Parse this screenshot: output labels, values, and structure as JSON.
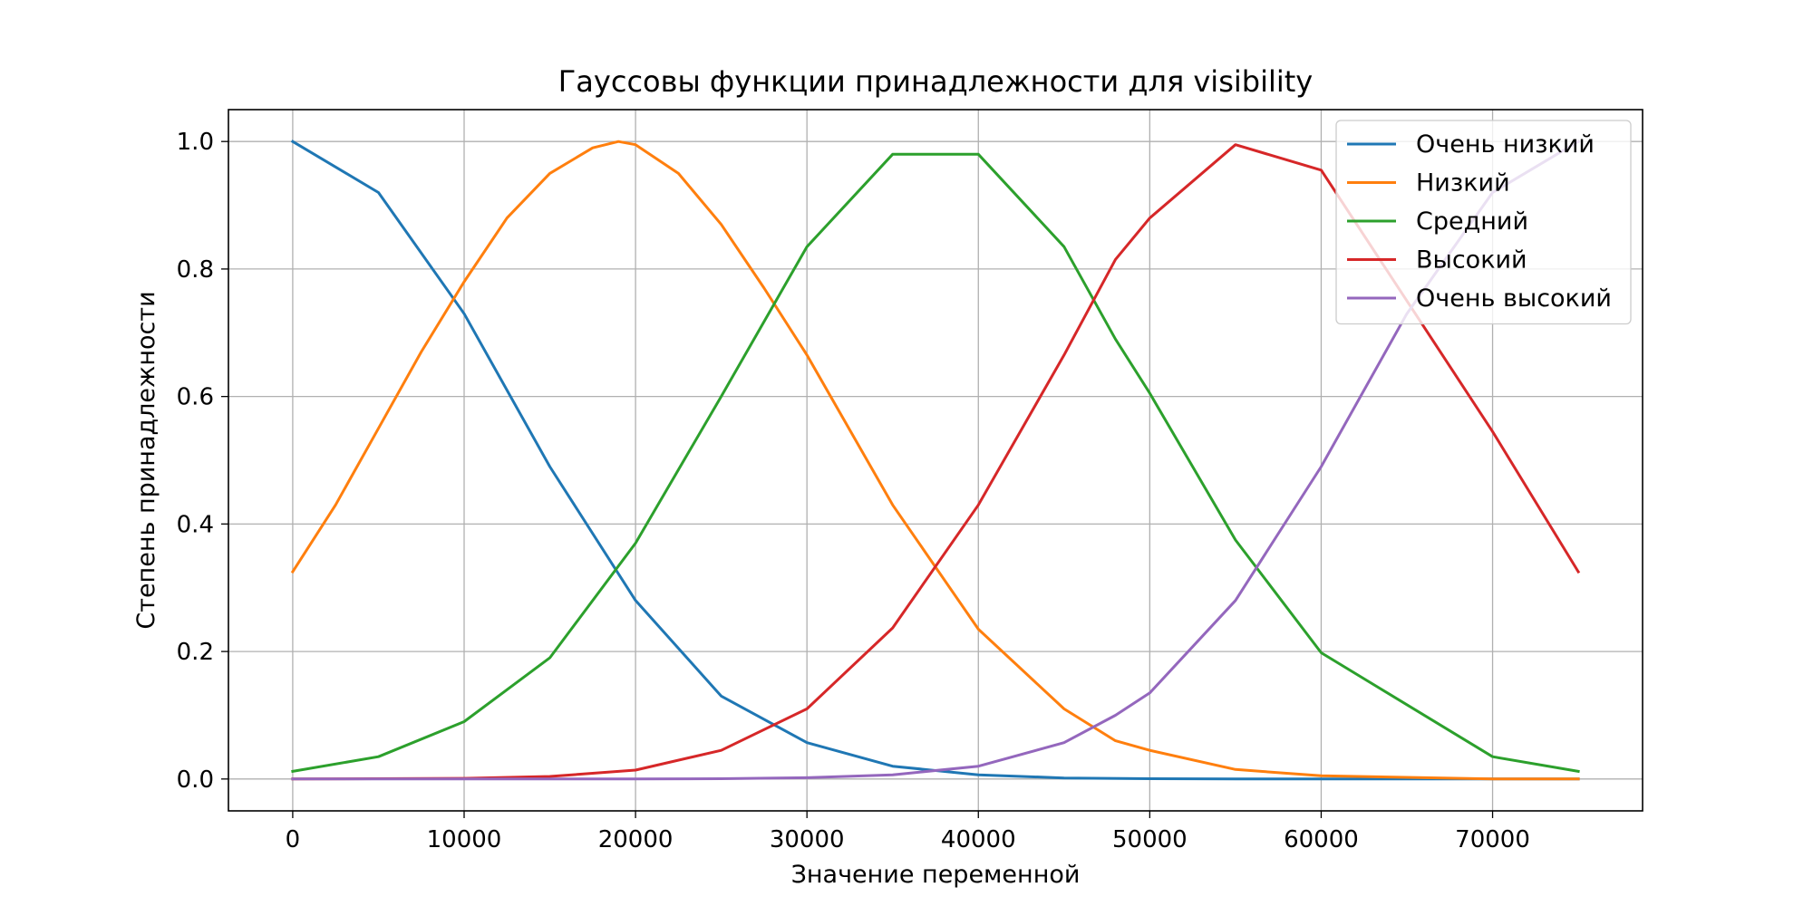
{
  "chart_data": {
    "type": "line",
    "title": "Гауссовы функции принадлежности для visibility",
    "xlabel": "Значение переменной",
    "ylabel": "Степень принадлежности",
    "xlim": [
      -3750,
      78750
    ],
    "ylim": [
      -0.05,
      1.05
    ],
    "xticks": [
      0,
      10000,
      20000,
      30000,
      40000,
      50000,
      60000,
      70000
    ],
    "yticks": [
      0.0,
      0.2,
      0.4,
      0.6,
      0.8,
      1.0
    ],
    "xtick_labels": [
      "0",
      "10000",
      "20000",
      "30000",
      "40000",
      "50000",
      "60000",
      "70000"
    ],
    "ytick_labels": [
      "0.0",
      "0.2",
      "0.4",
      "0.6",
      "0.8",
      "1.0"
    ],
    "grid": true,
    "legend_position": "top-right",
    "series": [
      {
        "name": "Очень низкий",
        "color": "#1f77b4",
        "x": [
          0,
          5000,
          10000,
          15000,
          20000,
          25000,
          30000,
          35000,
          40000,
          45000,
          50000,
          55000,
          60000,
          65000,
          70000,
          75000
        ],
        "y": [
          1.0,
          0.92,
          0.73,
          0.49,
          0.28,
          0.13,
          0.057,
          0.02,
          0.0065,
          0.0016,
          0.0004,
          0.0001,
          0.0,
          0.0,
          0.0,
          0.0
        ]
      },
      {
        "name": "Низкий",
        "color": "#ff7f0e",
        "x": [
          0,
          2500,
          5000,
          7500,
          10000,
          12500,
          15000,
          17500,
          19000,
          20000,
          22500,
          25000,
          27500,
          30000,
          35000,
          40000,
          45000,
          48000,
          50000,
          55000,
          60000,
          70000,
          75000
        ],
        "y": [
          0.325,
          0.43,
          0.55,
          0.67,
          0.78,
          0.88,
          0.95,
          0.99,
          1.0,
          0.995,
          0.95,
          0.87,
          0.77,
          0.665,
          0.43,
          0.235,
          0.11,
          0.06,
          0.045,
          0.015,
          0.005,
          0.0,
          0.0
        ]
      },
      {
        "name": "Средний",
        "color": "#2ca02c",
        "x": [
          0,
          5000,
          10000,
          15000,
          20000,
          25000,
          30000,
          35000,
          40000,
          45000,
          48000,
          50000,
          55000,
          60000,
          70000,
          75000
        ],
        "y": [
          0.012,
          0.035,
          0.09,
          0.19,
          0.37,
          0.6,
          0.835,
          0.98,
          0.98,
          0.835,
          0.69,
          0.605,
          0.375,
          0.198,
          0.035,
          0.012
        ]
      },
      {
        "name": "Высокий",
        "color": "#d62728",
        "x": [
          0,
          10000,
          15000,
          20000,
          25000,
          30000,
          35000,
          40000,
          45000,
          48000,
          50000,
          55000,
          60000,
          70000,
          75000
        ],
        "y": [
          0.0,
          0.001,
          0.004,
          0.014,
          0.045,
          0.11,
          0.237,
          0.43,
          0.665,
          0.815,
          0.88,
          0.995,
          0.955,
          0.545,
          0.325
        ]
      },
      {
        "name": "Очень высокий",
        "color": "#9467bd",
        "x": [
          0,
          20000,
          25000,
          30000,
          35000,
          40000,
          45000,
          48000,
          50000,
          55000,
          60000,
          65000,
          70000,
          75000
        ],
        "y": [
          0.0,
          0.0,
          0.0005,
          0.002,
          0.0065,
          0.02,
          0.057,
          0.1,
          0.135,
          0.28,
          0.49,
          0.73,
          0.92,
          1.0
        ]
      }
    ]
  }
}
